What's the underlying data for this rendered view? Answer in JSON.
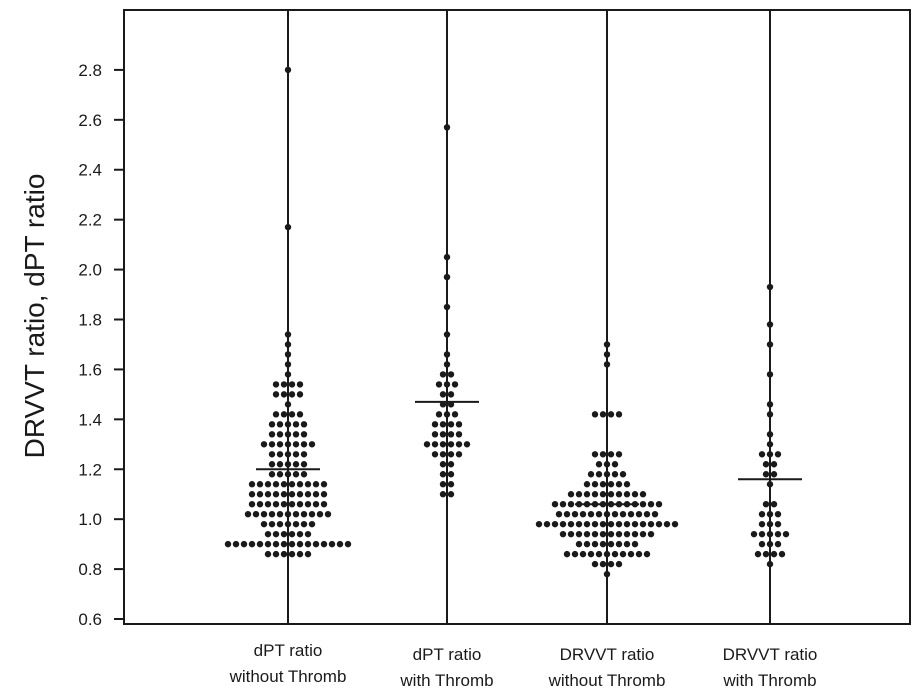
{
  "chart_data": {
    "type": "scatter",
    "title": "",
    "xlabel": "",
    "ylabel": "DRVVT ratio, dPT ratio",
    "ylim": [
      0.58,
      3.04
    ],
    "yticks": [
      0.6,
      0.8,
      1.0,
      1.2,
      1.4,
      1.6,
      1.8,
      2.0,
      2.2,
      2.4,
      2.6,
      2.8
    ],
    "ytick_labels": [
      "0.6",
      "0.8",
      "1.0",
      "1.2",
      "1.4",
      "1.6",
      "1.8",
      "2.0",
      "2.2",
      "2.4",
      "2.6",
      "2.8"
    ],
    "grid": false,
    "legend": "none",
    "dot_color": "#1a1a1a",
    "categories": [
      {
        "line1": "dPT ratio",
        "line2": "without Thromb"
      },
      {
        "line1": "dPT ratio",
        "line2": "with Thromb"
      },
      {
        "line1": "DRVVT ratio",
        "line2": "without Thromb"
      },
      {
        "line1": "DRVVT ratio",
        "line2": "with Thromb"
      }
    ],
    "series": [
      {
        "mean": 1.2,
        "rows": [
          [
            2.8,
            1
          ],
          [
            2.17,
            1
          ],
          [
            1.74,
            1
          ],
          [
            1.7,
            1
          ],
          [
            1.66,
            1
          ],
          [
            1.62,
            1
          ],
          [
            1.58,
            1
          ],
          [
            1.54,
            4
          ],
          [
            1.5,
            4
          ],
          [
            1.46,
            1
          ],
          [
            1.42,
            4
          ],
          [
            1.38,
            5
          ],
          [
            1.34,
            5
          ],
          [
            1.3,
            7
          ],
          [
            1.26,
            5
          ],
          [
            1.22,
            5
          ],
          [
            1.18,
            5
          ],
          [
            1.14,
            10
          ],
          [
            1.1,
            10
          ],
          [
            1.06,
            10
          ],
          [
            1.02,
            11
          ],
          [
            0.98,
            7
          ],
          [
            0.94,
            6
          ],
          [
            0.9,
            16
          ],
          [
            0.86,
            6
          ]
        ]
      },
      {
        "mean": 1.47,
        "rows": [
          [
            2.57,
            1
          ],
          [
            2.05,
            1
          ],
          [
            1.97,
            1
          ],
          [
            1.85,
            1
          ],
          [
            1.74,
            1
          ],
          [
            1.66,
            1
          ],
          [
            1.62,
            1
          ],
          [
            1.58,
            2
          ],
          [
            1.54,
            3
          ],
          [
            1.5,
            2
          ],
          [
            1.46,
            2
          ],
          [
            1.42,
            3
          ],
          [
            1.38,
            4
          ],
          [
            1.34,
            4
          ],
          [
            1.3,
            6
          ],
          [
            1.26,
            4
          ],
          [
            1.22,
            2
          ],
          [
            1.18,
            2
          ],
          [
            1.14,
            2
          ],
          [
            1.1,
            2
          ]
        ]
      },
      {
        "mean": 1.06,
        "rows": [
          [
            1.7,
            1
          ],
          [
            1.66,
            1
          ],
          [
            1.62,
            1
          ],
          [
            1.42,
            4
          ],
          [
            1.26,
            4
          ],
          [
            1.22,
            3
          ],
          [
            1.18,
            5
          ],
          [
            1.14,
            6
          ],
          [
            1.1,
            10
          ],
          [
            1.06,
            14
          ],
          [
            1.02,
            13
          ],
          [
            0.98,
            18
          ],
          [
            0.94,
            12
          ],
          [
            0.9,
            8
          ],
          [
            0.86,
            11
          ],
          [
            0.82,
            4
          ],
          [
            0.78,
            1
          ]
        ]
      },
      {
        "mean": 1.16,
        "rows": [
          [
            1.93,
            1
          ],
          [
            1.78,
            1
          ],
          [
            1.7,
            1
          ],
          [
            1.58,
            1
          ],
          [
            1.46,
            1
          ],
          [
            1.42,
            1
          ],
          [
            1.34,
            1
          ],
          [
            1.3,
            1
          ],
          [
            1.26,
            3
          ],
          [
            1.22,
            2
          ],
          [
            1.18,
            2
          ],
          [
            1.14,
            1
          ],
          [
            1.06,
            2
          ],
          [
            1.02,
            3
          ],
          [
            0.98,
            3
          ],
          [
            0.94,
            5
          ],
          [
            0.9,
            3
          ],
          [
            0.86,
            4
          ],
          [
            0.82,
            1
          ]
        ]
      }
    ]
  }
}
